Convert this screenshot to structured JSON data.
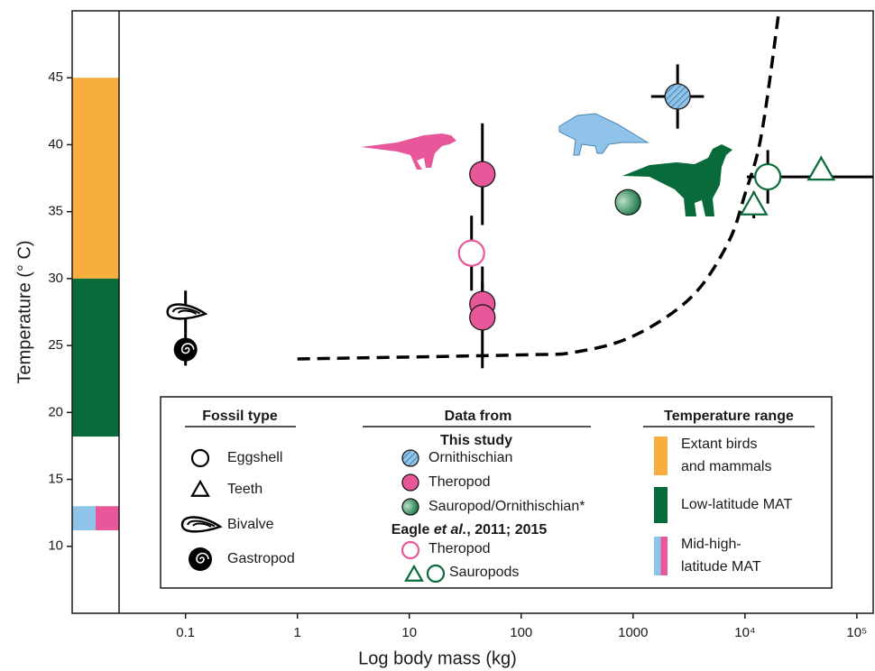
{
  "chart_data": {
    "type": "scatter",
    "x_label": "Log body mass (kg)",
    "y_label": "Temperature (° C)",
    "x_log": true,
    "xlim": [
      0.0097,
      140000
    ],
    "ylim": [
      5,
      50
    ],
    "xticks": [
      0.1,
      1,
      10,
      100,
      1000,
      {
        "value": 10000,
        "label": "10⁴"
      },
      {
        "value": 100000,
        "label": "10⁵"
      }
    ],
    "yticks": [
      10,
      15,
      20,
      25,
      30,
      35,
      40,
      45
    ],
    "series": [
      {
        "name": "Ornithischian",
        "color": "#8fc3ea",
        "fill": "hatched",
        "marker": "circle",
        "x": [
          2500
        ],
        "y": [
          43.6
        ],
        "y_err": [
          2.4
        ],
        "x_low": [
          1450
        ],
        "x_high": [
          4300
        ]
      },
      {
        "name": "Theropod",
        "color": "#e8579a",
        "fill": "solid",
        "marker": "circle",
        "x": [
          45,
          45,
          45
        ],
        "y": [
          37.8,
          28.1,
          27.1
        ],
        "y_err": [
          3.8,
          1.6,
          3.8
        ]
      },
      {
        "name": "Sauropod/Ornithischian*",
        "color": "#0a6b3a",
        "fill": "gradient",
        "marker": "circle",
        "x": [
          900
        ],
        "y": [
          35.7
        ]
      },
      {
        "name": "Theropod",
        "color": "#e8579a",
        "fill": "none",
        "marker": "circle",
        "x": [
          36
        ],
        "y": [
          31.9
        ],
        "y_err": [
          2.8
        ]
      },
      {
        "name": "Sauropods",
        "color": "#0a6b3a",
        "fill": "none",
        "marker": [
          "triangle",
          "circle",
          "triangle"
        ],
        "x": [
          12000,
          16000,
          48000
        ],
        "y": [
          35.5,
          37.6,
          38.1
        ],
        "y_err": [
          1,
          2,
          null
        ],
        "x_low": [
          null,
          10400,
          null
        ],
        "x_high": [
          null,
          140000,
          null
        ]
      },
      {
        "color": "#000000",
        "fill": "none",
        "marker": [
          "bivalve",
          "gastropod"
        ],
        "x": [
          0.1,
          0.1
        ],
        "y": [
          27.5,
          24.7
        ],
        "y_err": [
          1.6,
          1.2
        ]
      }
    ],
    "curve": {
      "style": "dashed",
      "color": "#000000",
      "x": [
        1,
        100,
        300,
        1000,
        3300,
        7000,
        10000,
        14000,
        20000
      ],
      "y": [
        24,
        24.3,
        24.5,
        25.7,
        28.6,
        32.6,
        36.3,
        40.7,
        49.8
      ]
    },
    "ranges": [
      {
        "label": [
          "Extant birds",
          "and mammals"
        ],
        "colors": [
          "#f8ae3e"
        ],
        "low": 30,
        "high": 45
      },
      {
        "label": [
          "Low-latitude MAT"
        ],
        "colors": [
          "#0a6b3a"
        ],
        "low": 18.2,
        "high": 30
      },
      {
        "label": [
          "Mid-high-",
          "latitude MAT"
        ],
        "colors": [
          "#8fc3ea",
          "#e8579a"
        ],
        "low": 11.2,
        "high": 13
      }
    ],
    "legend": {
      "fossil_type": {
        "title": "Fossil type",
        "items": [
          {
            "label": "Eggshell",
            "marker": "circle"
          },
          {
            "label": "Teeth",
            "marker": "triangle"
          },
          {
            "label": "Bivalve",
            "marker": "bivalve"
          },
          {
            "label": "Gastropod",
            "marker": "gastropod"
          }
        ]
      },
      "data_from": {
        "title": "Data from",
        "this_study": "This study",
        "eagle": [
          "Eagle ",
          "et al.",
          ", 2011; 2015"
        ]
      },
      "temperature_range": {
        "title": "Temperature range"
      }
    }
  }
}
